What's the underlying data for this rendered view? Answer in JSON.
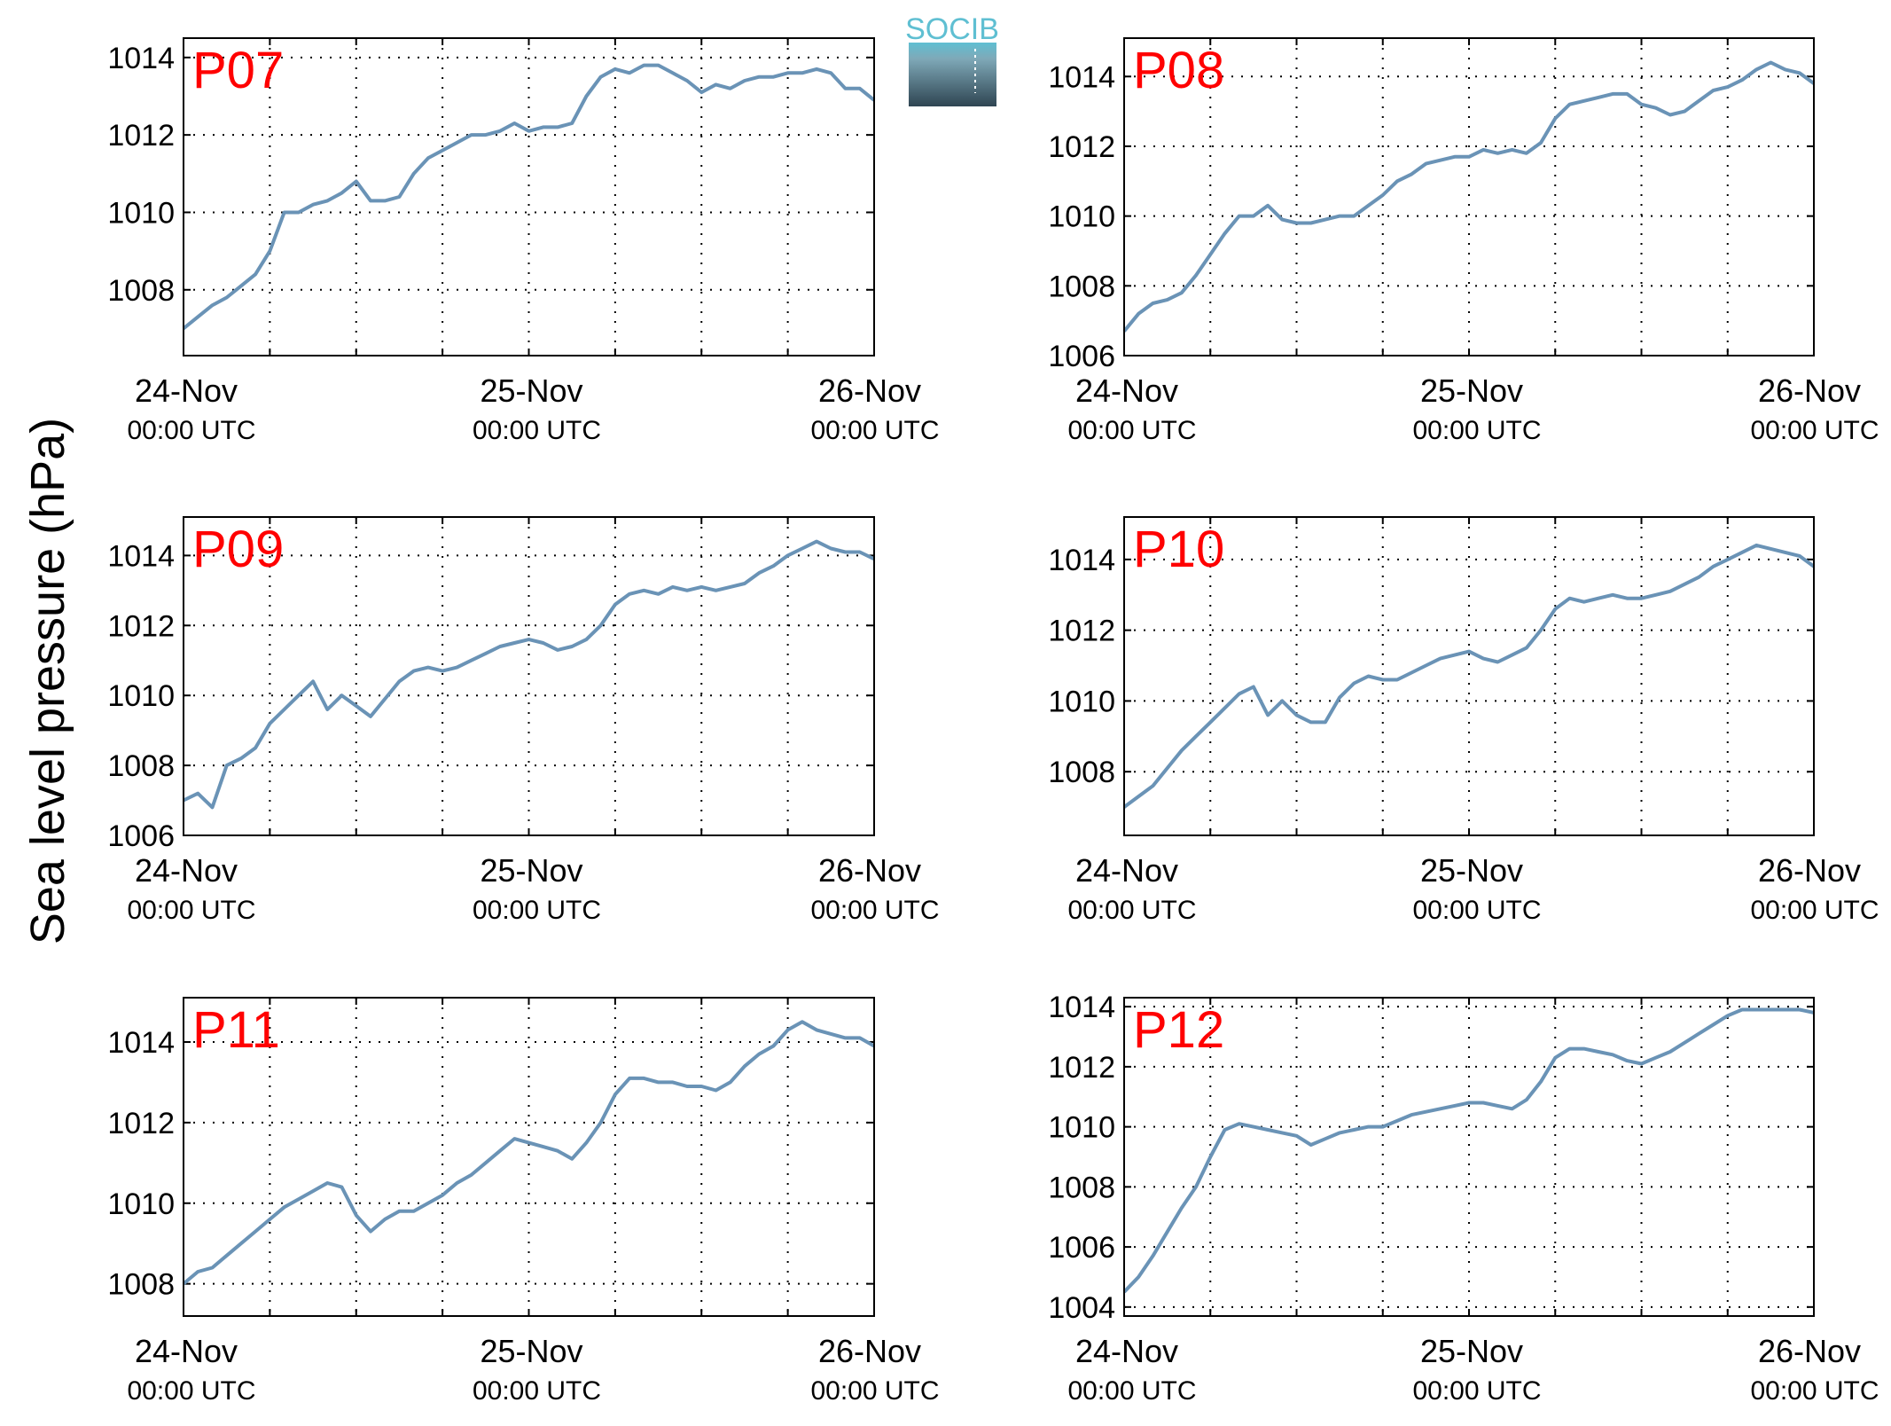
{
  "figure": {
    "ylabel": "Sea level pressure (hPa)",
    "logo_text": "SOCIB",
    "line_color": "#6A93B6",
    "station_label_color": "#FF0000",
    "grid": "dotted"
  },
  "chart_data": [
    {
      "type": "line",
      "station": "P07",
      "x_ticks": [
        {
          "line1": "24-Nov",
          "line2": "00:00 UTC"
        },
        {
          "line1": "25-Nov",
          "line2": "00:00 UTC"
        },
        {
          "line1": "26-Nov",
          "line2": "00:00 UTC"
        }
      ],
      "xlim": [
        0,
        48
      ],
      "ylim": [
        1006.3,
        1014.5
      ],
      "yticks": [
        "1008",
        "1010",
        "1012",
        "1014"
      ],
      "series": [
        {
          "x": [
            0,
            1,
            2,
            3,
            4,
            5,
            6,
            7,
            8,
            9,
            10,
            11,
            12,
            13,
            14,
            15,
            16,
            17,
            18,
            19,
            20,
            21,
            22,
            23,
            24,
            25,
            26,
            27,
            28,
            29,
            30,
            31,
            32,
            33,
            34,
            35,
            36,
            37,
            38,
            39,
            40,
            41,
            42,
            43,
            44,
            45,
            46,
            47,
            48
          ],
          "y": [
            1007.0,
            1007.3,
            1007.6,
            1007.8,
            1008.1,
            1008.4,
            1009.0,
            1010.0,
            1010.0,
            1010.2,
            1010.3,
            1010.5,
            1010.8,
            1010.3,
            1010.3,
            1010.4,
            1011.0,
            1011.4,
            1011.6,
            1011.8,
            1012.0,
            1012.0,
            1012.1,
            1012.3,
            1012.1,
            1012.2,
            1012.2,
            1012.3,
            1013.0,
            1013.5,
            1013.7,
            1013.6,
            1013.8,
            1013.8,
            1013.6,
            1013.4,
            1013.1,
            1013.3,
            1013.2,
            1013.4,
            1013.5,
            1013.5,
            1013.6,
            1013.6,
            1013.7,
            1013.6,
            1013.2,
            1013.2,
            1012.9
          ]
        }
      ]
    },
    {
      "type": "line",
      "station": "P08",
      "x_ticks": [
        {
          "line1": "24-Nov",
          "line2": "00:00 UTC"
        },
        {
          "line1": "25-Nov",
          "line2": "00:00 UTC"
        },
        {
          "line1": "26-Nov",
          "line2": "00:00 UTC"
        }
      ],
      "xlim": [
        0,
        48
      ],
      "ylim": [
        1006,
        1015.1
      ],
      "yticks": [
        "1006",
        "1008",
        "1010",
        "1012",
        "1014"
      ],
      "series": [
        {
          "x": [
            0,
            1,
            2,
            3,
            4,
            5,
            6,
            7,
            8,
            9,
            10,
            11,
            12,
            13,
            14,
            15,
            16,
            17,
            18,
            19,
            20,
            21,
            22,
            23,
            24,
            25,
            26,
            27,
            28,
            29,
            30,
            31,
            32,
            33,
            34,
            35,
            36,
            37,
            38,
            39,
            40,
            41,
            42,
            43,
            44,
            45,
            46,
            47,
            48
          ],
          "y": [
            1006.7,
            1007.2,
            1007.5,
            1007.6,
            1007.8,
            1008.3,
            1008.9,
            1009.5,
            1010.0,
            1010.0,
            1010.3,
            1009.9,
            1009.8,
            1009.8,
            1009.9,
            1010.0,
            1010.0,
            1010.3,
            1010.6,
            1011.0,
            1011.2,
            1011.5,
            1011.6,
            1011.7,
            1011.7,
            1011.9,
            1011.8,
            1011.9,
            1011.8,
            1012.1,
            1012.8,
            1013.2,
            1013.3,
            1013.4,
            1013.5,
            1013.5,
            1013.2,
            1013.1,
            1012.9,
            1013.0,
            1013.3,
            1013.6,
            1013.7,
            1013.9,
            1014.2,
            1014.4,
            1014.2,
            1014.1,
            1013.8
          ]
        }
      ]
    },
    {
      "type": "line",
      "station": "P09",
      "x_ticks": [
        {
          "line1": "24-Nov",
          "line2": "00:00 UTC"
        },
        {
          "line1": "25-Nov",
          "line2": "00:00 UTC"
        },
        {
          "line1": "26-Nov",
          "line2": "00:00 UTC"
        }
      ],
      "xlim": [
        0,
        48
      ],
      "ylim": [
        1006,
        1015.1
      ],
      "yticks": [
        "1006",
        "1008",
        "1010",
        "1012",
        "1014"
      ],
      "series": [
        {
          "x": [
            0,
            1,
            2,
            3,
            4,
            5,
            6,
            7,
            8,
            9,
            10,
            11,
            12,
            13,
            14,
            15,
            16,
            17,
            18,
            19,
            20,
            21,
            22,
            23,
            24,
            25,
            26,
            27,
            28,
            29,
            30,
            31,
            32,
            33,
            34,
            35,
            36,
            37,
            38,
            39,
            40,
            41,
            42,
            43,
            44,
            45,
            46,
            47,
            48
          ],
          "y": [
            1007.0,
            1007.2,
            1006.8,
            1008.0,
            1008.2,
            1008.5,
            1009.2,
            1009.6,
            1010.0,
            1010.4,
            1009.6,
            1010.0,
            1009.7,
            1009.4,
            1009.9,
            1010.4,
            1010.7,
            1010.8,
            1010.7,
            1010.8,
            1011.0,
            1011.2,
            1011.4,
            1011.5,
            1011.6,
            1011.5,
            1011.3,
            1011.4,
            1011.6,
            1012.0,
            1012.6,
            1012.9,
            1013.0,
            1012.9,
            1013.1,
            1013.0,
            1013.1,
            1013.0,
            1013.1,
            1013.2,
            1013.5,
            1013.7,
            1014.0,
            1014.2,
            1014.4,
            1014.2,
            1014.1,
            1014.1,
            1013.9
          ]
        }
      ]
    },
    {
      "type": "line",
      "station": "P10",
      "x_ticks": [
        {
          "line1": "24-Nov",
          "line2": "00:00 UTC"
        },
        {
          "line1": "25-Nov",
          "line2": "00:00 UTC"
        },
        {
          "line1": "26-Nov",
          "line2": "00:00 UTC"
        }
      ],
      "xlim": [
        0,
        48
      ],
      "ylim": [
        1006.2,
        1015.2
      ],
      "yticks": [
        "1008",
        "1010",
        "1012",
        "1014"
      ],
      "series": [
        {
          "x": [
            0,
            1,
            2,
            3,
            4,
            5,
            6,
            7,
            8,
            9,
            10,
            11,
            12,
            13,
            14,
            15,
            16,
            17,
            18,
            19,
            20,
            21,
            22,
            23,
            24,
            25,
            26,
            27,
            28,
            29,
            30,
            31,
            32,
            33,
            34,
            35,
            36,
            37,
            38,
            39,
            40,
            41,
            42,
            43,
            44,
            45,
            46,
            47,
            48
          ],
          "y": [
            1007.0,
            1007.3,
            1007.6,
            1008.1,
            1008.6,
            1009.0,
            1009.4,
            1009.8,
            1010.2,
            1010.4,
            1009.6,
            1010.0,
            1009.6,
            1009.4,
            1009.4,
            1010.1,
            1010.5,
            1010.7,
            1010.6,
            1010.6,
            1010.8,
            1011.0,
            1011.2,
            1011.3,
            1011.4,
            1011.2,
            1011.1,
            1011.3,
            1011.5,
            1012.0,
            1012.6,
            1012.9,
            1012.8,
            1012.9,
            1013.0,
            1012.9,
            1012.9,
            1013.0,
            1013.1,
            1013.3,
            1013.5,
            1013.8,
            1014.0,
            1014.2,
            1014.4,
            1014.3,
            1014.2,
            1014.1,
            1013.8
          ]
        }
      ]
    },
    {
      "type": "line",
      "station": "P11",
      "x_ticks": [
        {
          "line1": "24-Nov",
          "line2": "00:00 UTC"
        },
        {
          "line1": "25-Nov",
          "line2": "00:00 UTC"
        },
        {
          "line1": "26-Nov",
          "line2": "00:00 UTC"
        }
      ],
      "xlim": [
        0,
        48
      ],
      "ylim": [
        1007.2,
        1015.1
      ],
      "yticks": [
        "1008",
        "1010",
        "1012",
        "1014"
      ],
      "series": [
        {
          "x": [
            0,
            1,
            2,
            3,
            4,
            5,
            6,
            7,
            8,
            9,
            10,
            11,
            12,
            13,
            14,
            15,
            16,
            17,
            18,
            19,
            20,
            21,
            22,
            23,
            24,
            25,
            26,
            27,
            28,
            29,
            30,
            31,
            32,
            33,
            34,
            35,
            36,
            37,
            38,
            39,
            40,
            41,
            42,
            43,
            44,
            45,
            46,
            47,
            48
          ],
          "y": [
            1008.0,
            1008.3,
            1008.4,
            1008.7,
            1009.0,
            1009.3,
            1009.6,
            1009.9,
            1010.1,
            1010.3,
            1010.5,
            1010.4,
            1009.7,
            1009.3,
            1009.6,
            1009.8,
            1009.8,
            1010.0,
            1010.2,
            1010.5,
            1010.7,
            1011.0,
            1011.3,
            1011.6,
            1011.5,
            1011.4,
            1011.3,
            1011.1,
            1011.5,
            1012.0,
            1012.7,
            1013.1,
            1013.1,
            1013.0,
            1013.0,
            1012.9,
            1012.9,
            1012.8,
            1013.0,
            1013.4,
            1013.7,
            1013.9,
            1014.3,
            1014.5,
            1014.3,
            1014.2,
            1014.1,
            1014.1,
            1013.9
          ]
        }
      ]
    },
    {
      "type": "line",
      "station": "P12",
      "x_ticks": [
        {
          "line1": "24-Nov",
          "line2": "00:00 UTC"
        },
        {
          "line1": "25-Nov",
          "line2": "00:00 UTC"
        },
        {
          "line1": "26-Nov",
          "line2": "00:00 UTC"
        }
      ],
      "xlim": [
        0,
        48
      ],
      "ylim": [
        1003.7,
        1014.3
      ],
      "yticks": [
        "1004",
        "1006",
        "1008",
        "1010",
        "1012",
        "1014"
      ],
      "series": [
        {
          "x": [
            0,
            1,
            2,
            3,
            4,
            5,
            6,
            7,
            8,
            9,
            10,
            11,
            12,
            13,
            14,
            15,
            16,
            17,
            18,
            19,
            20,
            21,
            22,
            23,
            24,
            25,
            26,
            27,
            28,
            29,
            30,
            31,
            32,
            33,
            34,
            35,
            36,
            37,
            38,
            39,
            40,
            41,
            42,
            43,
            44,
            45,
            46,
            47,
            48
          ],
          "y": [
            1004.5,
            1005.0,
            1005.7,
            1006.5,
            1007.3,
            1008.0,
            1009.0,
            1009.9,
            1010.1,
            1010.0,
            1009.9,
            1009.8,
            1009.7,
            1009.4,
            1009.6,
            1009.8,
            1009.9,
            1010.0,
            1010.0,
            1010.2,
            1010.4,
            1010.5,
            1010.6,
            1010.7,
            1010.8,
            1010.8,
            1010.7,
            1010.6,
            1010.9,
            1011.5,
            1012.3,
            1012.6,
            1012.6,
            1012.5,
            1012.4,
            1012.2,
            1012.1,
            1012.3,
            1012.5,
            1012.8,
            1013.1,
            1013.4,
            1013.7,
            1013.9,
            1013.9,
            1013.9,
            1013.9,
            1013.9,
            1013.8
          ]
        }
      ]
    }
  ]
}
